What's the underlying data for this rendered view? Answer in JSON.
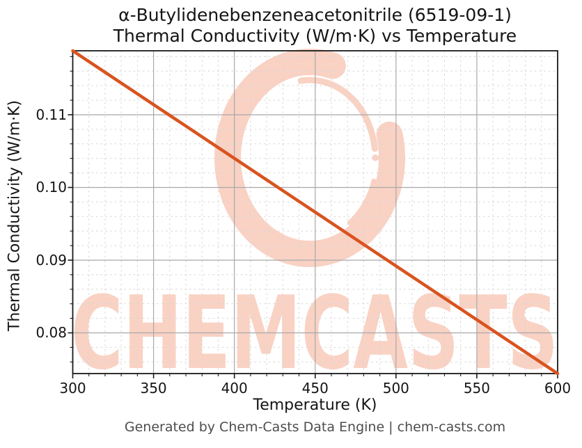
{
  "header": {
    "line1": "α-Butylidenebenzeneacetonitrile (6519-09-1)",
    "line2": "Thermal Conductivity (W/m·K) vs Temperature"
  },
  "footer": {
    "text": "Generated by Chem-Casts Data Engine | chem-casts.com"
  },
  "watermark": {
    "text": "CHEMCASTS"
  },
  "colors": {
    "line": "#d9531f",
    "watermark": "#f9d2c4",
    "grid_major": "#a8a8a8",
    "grid_minor": "#d6d6d6",
    "spine": "#1a1a1a",
    "tick": "#1a1a1a",
    "title_text": "#141414",
    "axis_text": "#141414",
    "footer_text": "#4d4d4d"
  },
  "chart_data": {
    "type": "line",
    "title": "α-Butylidenebenzeneacetonitrile (6519-09-1) — Thermal Conductivity (W/m·K) vs Temperature",
    "xlabel": "Temperature (K)",
    "ylabel": "Thermal Conductivity (W/m·K)",
    "xlim": [
      300,
      600
    ],
    "ylim": [
      0.0744,
      0.1188
    ],
    "x_major_ticks": [
      300,
      350,
      400,
      450,
      500,
      550,
      600
    ],
    "x_tick_labels": [
      "300",
      "350",
      "400",
      "450",
      "500",
      "550",
      "600"
    ],
    "y_major_ticks": [
      0.08,
      0.09,
      0.1,
      0.11
    ],
    "y_tick_labels": [
      "0.08",
      "0.09",
      "0.10",
      "0.11"
    ],
    "x_minor_step": 10,
    "y_minor_step": 0.002,
    "grid": {
      "major": true,
      "minor_dashed": true
    },
    "legend_position": "none",
    "series": [
      {
        "name": "Thermal Conductivity (W/m·K)",
        "color": "#d9531f",
        "x": [
          300,
          350,
          400,
          450,
          500,
          550,
          600
        ],
        "y": [
          0.1188,
          0.1114,
          0.104,
          0.0966,
          0.0892,
          0.0818,
          0.0744
        ]
      }
    ]
  }
}
